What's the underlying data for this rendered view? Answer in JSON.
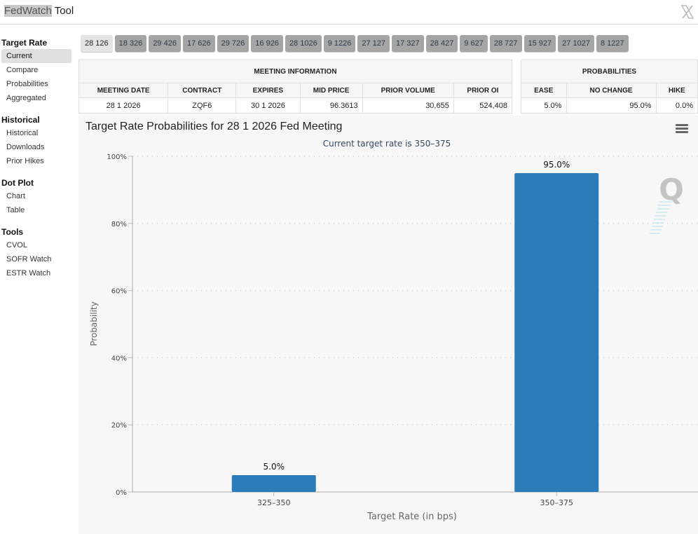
{
  "app": {
    "title_highlight": "FedWatch",
    "title_rest": " Tool",
    "close_icon": "x-logo-icon"
  },
  "sidebar": {
    "sections": [
      {
        "heading": "Target Rate",
        "items": [
          {
            "label": "Current",
            "active": true
          },
          {
            "label": "Compare"
          },
          {
            "label": "Probabilities"
          },
          {
            "label": "Aggregated"
          }
        ]
      },
      {
        "heading": "Historical",
        "items": [
          {
            "label": "Historical"
          },
          {
            "label": "Downloads"
          },
          {
            "label": "Prior Hikes"
          }
        ]
      },
      {
        "heading": "Dot Plot",
        "items": [
          {
            "label": "Chart"
          },
          {
            "label": "Table"
          }
        ]
      },
      {
        "heading": "Tools",
        "items": [
          {
            "label": "CVOL"
          },
          {
            "label": "SOFR Watch"
          },
          {
            "label": "ESTR Watch"
          }
        ]
      }
    ]
  },
  "meeting_tabs": [
    {
      "label": "28 126",
      "active": true
    },
    {
      "label": "18 326"
    },
    {
      "label": "29 426"
    },
    {
      "label": "17 626"
    },
    {
      "label": "29 726"
    },
    {
      "label": "16 926"
    },
    {
      "label": "28 1026"
    },
    {
      "label": "9 1226"
    },
    {
      "label": "27 127"
    },
    {
      "label": "17 327"
    },
    {
      "label": "28 427"
    },
    {
      "label": "9 627"
    },
    {
      "label": "28 727"
    },
    {
      "label": "15 927"
    },
    {
      "label": "27 1027"
    },
    {
      "label": "8 1227"
    }
  ],
  "meeting_info": {
    "heading": "MEETING INFORMATION",
    "columns": [
      "MEETING DATE",
      "CONTRACT",
      "EXPIRES",
      "MID PRICE",
      "PRIOR VOLUME",
      "PRIOR OI"
    ],
    "row": [
      "28 1 2026",
      "ZQF6",
      "30 1 2026",
      "96.3613",
      "30,655",
      "524,408"
    ]
  },
  "probabilities": {
    "heading": "PROBABILITIES",
    "columns": [
      "EASE",
      "NO CHANGE",
      "HIKE"
    ],
    "row": [
      "5.0%",
      "95.0%",
      "0.0%"
    ]
  },
  "chart_panel": {
    "title": "Target Rate Probabilities for 28 1 2026 Fed Meeting",
    "menu_icon": "hamburger-menu-icon",
    "watermark": "Q"
  },
  "chart_data": {
    "type": "bar",
    "title": "Target Rate Probabilities for 28 1 2026 Fed Meeting",
    "subtitle": "Current target rate is 350–375",
    "categories": [
      "325–350",
      "350–375"
    ],
    "values": [
      5.0,
      95.0
    ],
    "data_labels": [
      "5.0%",
      "95.0%"
    ],
    "xlabel": "Target Rate (in bps)",
    "ylabel": "Probability",
    "ylim": [
      0,
      100
    ],
    "yticks": [
      0,
      20,
      40,
      60,
      80,
      100
    ],
    "ytick_labels": [
      "0%",
      "20%",
      "40%",
      "60%",
      "80%",
      "100%"
    ],
    "grid": true,
    "bar_color": "#2a7db8"
  }
}
